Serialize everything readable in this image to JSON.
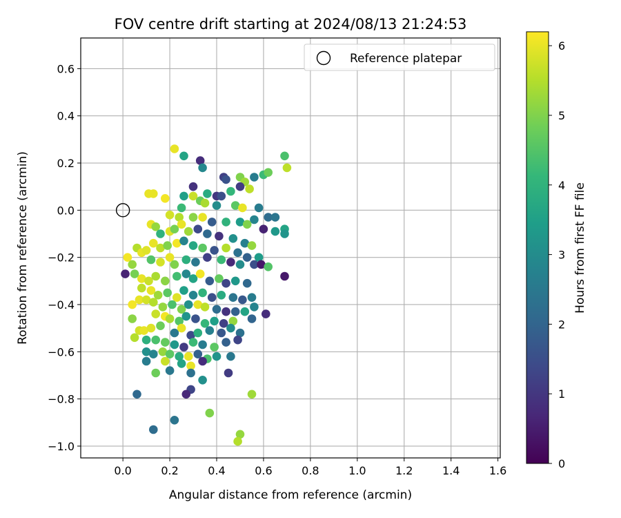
{
  "chart_data": {
    "type": "scatter",
    "title": "FOV centre drift starting at 2024/08/13 21:24:53",
    "xlabel": "Angular distance from reference (arcmin)",
    "ylabel": "Rotation from reference (arcmin)",
    "xlim": [
      -0.18,
      1.61
    ],
    "ylim": [
      -1.05,
      0.73
    ],
    "xticks": [
      0.0,
      0.2,
      0.4,
      0.6,
      0.8,
      1.0,
      1.2,
      1.4,
      1.6
    ],
    "xtick_labels": [
      "0.0",
      "0.2",
      "0.4",
      "0.6",
      "0.8",
      "1.0",
      "1.2",
      "1.4",
      "1.6"
    ],
    "yticks": [
      0.6,
      0.4,
      0.2,
      0.0,
      -0.2,
      -0.4,
      -0.6,
      -0.8,
      -1.0
    ],
    "ytick_labels": [
      "0.6",
      "0.4",
      "0.2",
      "0.0",
      "−0.2",
      "−0.4",
      "−0.6",
      "−0.8",
      "−1.0"
    ],
    "grid": true,
    "legend": {
      "placement": "top-right",
      "entries": [
        {
          "label": "Reference platepar",
          "marker": "open-circle"
        }
      ]
    },
    "reference_point": {
      "x": 0.0,
      "y": 0.0
    },
    "colorbar": {
      "label": "Hours from first FF file",
      "colormap": "viridis",
      "range": [
        0,
        6.2
      ],
      "ticks": [
        0,
        1,
        2,
        3,
        4,
        5,
        6
      ],
      "tick_labels": [
        "0",
        "1",
        "2",
        "3",
        "4",
        "5",
        "6"
      ],
      "stops": [
        "#440154",
        "#482878",
        "#3e4989",
        "#31688e",
        "#26828e",
        "#1f9e89",
        "#35b779",
        "#6ece58",
        "#b5de2b",
        "#fde725"
      ]
    },
    "points": [
      [
        0.22,
        0.26,
        6.0
      ],
      [
        0.26,
        0.23,
        3.6
      ],
      [
        0.33,
        0.21,
        0.8
      ],
      [
        0.34,
        0.18,
        2.9
      ],
      [
        0.43,
        0.14,
        1.2
      ],
      [
        0.44,
        0.13,
        1.6
      ],
      [
        0.5,
        0.14,
        5.0
      ],
      [
        0.52,
        0.12,
        5.3
      ],
      [
        0.56,
        0.14,
        2.6
      ],
      [
        0.6,
        0.15,
        4.2
      ],
      [
        0.62,
        0.16,
        4.8
      ],
      [
        0.69,
        0.23,
        4.4
      ],
      [
        0.7,
        0.18,
        5.6
      ],
      [
        0.3,
        0.1,
        0.9
      ],
      [
        0.5,
        0.1,
        1.1
      ],
      [
        0.54,
        0.09,
        5.6
      ],
      [
        0.36,
        0.07,
        3.8
      ],
      [
        0.4,
        0.06,
        1.0
      ],
      [
        0.42,
        0.06,
        1.5
      ],
      [
        0.46,
        0.08,
        4.1
      ],
      [
        0.26,
        0.06,
        3.5
      ],
      [
        0.3,
        0.06,
        5.7
      ],
      [
        0.11,
        0.07,
        6.0
      ],
      [
        0.13,
        0.07,
        6.0
      ],
      [
        0.18,
        0.05,
        6.1
      ],
      [
        0.25,
        0.01,
        4.2
      ],
      [
        0.33,
        0.04,
        4.8
      ],
      [
        0.35,
        0.03,
        5.4
      ],
      [
        0.4,
        0.02,
        3.0
      ],
      [
        0.48,
        0.02,
        4.6
      ],
      [
        0.51,
        0.01,
        6.0
      ],
      [
        0.58,
        0.01,
        2.6
      ],
      [
        0.62,
        -0.03,
        2.2
      ],
      [
        0.65,
        -0.03,
        2.4
      ],
      [
        0.56,
        -0.04,
        2.8
      ],
      [
        0.2,
        -0.02,
        5.8
      ],
      [
        0.24,
        -0.03,
        5.5
      ],
      [
        0.3,
        -0.03,
        5.1
      ],
      [
        0.34,
        -0.03,
        6.0
      ],
      [
        0.38,
        -0.05,
        1.8
      ],
      [
        0.44,
        -0.05,
        4.0
      ],
      [
        0.5,
        -0.05,
        3.4
      ],
      [
        0.53,
        -0.06,
        5.0
      ],
      [
        0.6,
        -0.08,
        0.6
      ],
      [
        0.65,
        -0.09,
        3.3
      ],
      [
        0.69,
        -0.08,
        3.6
      ],
      [
        0.69,
        -0.1,
        3.2
      ],
      [
        0.12,
        -0.06,
        6.0
      ],
      [
        0.14,
        -0.07,
        5.2
      ],
      [
        0.16,
        -0.1,
        4.0
      ],
      [
        0.2,
        -0.09,
        5.9
      ],
      [
        0.22,
        -0.08,
        4.9
      ],
      [
        0.25,
        -0.06,
        6.0
      ],
      [
        0.28,
        -0.09,
        5.3
      ],
      [
        0.32,
        -0.08,
        1.4
      ],
      [
        0.36,
        -0.1,
        2.1
      ],
      [
        0.41,
        -0.11,
        0.9
      ],
      [
        0.47,
        -0.12,
        3.1
      ],
      [
        0.52,
        -0.14,
        2.7
      ],
      [
        0.55,
        -0.15,
        5.2
      ],
      [
        0.13,
        -0.14,
        6.0
      ],
      [
        0.16,
        -0.16,
        5.6
      ],
      [
        0.19,
        -0.15,
        5.0
      ],
      [
        0.23,
        -0.14,
        6.1
      ],
      [
        0.26,
        -0.13,
        2.8
      ],
      [
        0.3,
        -0.15,
        3.7
      ],
      [
        0.34,
        -0.16,
        4.6
      ],
      [
        0.39,
        -0.17,
        1.6
      ],
      [
        0.44,
        -0.16,
        5.5
      ],
      [
        0.49,
        -0.18,
        2.3
      ],
      [
        0.53,
        -0.2,
        1.9
      ],
      [
        0.58,
        -0.2,
        3.4
      ],
      [
        0.06,
        -0.16,
        5.5
      ],
      [
        0.08,
        -0.18,
        6.0
      ],
      [
        0.1,
        -0.17,
        5.9
      ],
      [
        0.02,
        -0.2,
        6.1
      ],
      [
        0.04,
        -0.23,
        5.2
      ],
      [
        0.12,
        -0.21,
        4.5
      ],
      [
        0.16,
        -0.22,
        5.8
      ],
      [
        0.2,
        -0.2,
        6.0
      ],
      [
        0.22,
        -0.23,
        5.0
      ],
      [
        0.27,
        -0.21,
        3.9
      ],
      [
        0.31,
        -0.22,
        2.5
      ],
      [
        0.36,
        -0.2,
        1.2
      ],
      [
        0.42,
        -0.21,
        4.2
      ],
      [
        0.46,
        -0.22,
        0.7
      ],
      [
        0.5,
        -0.23,
        3.0
      ],
      [
        0.56,
        -0.23,
        1.5
      ],
      [
        0.59,
        -0.23,
        0.4
      ],
      [
        0.62,
        -0.24,
        4.5
      ],
      [
        0.01,
        -0.27,
        0.6
      ],
      [
        0.05,
        -0.27,
        4.9
      ],
      [
        0.08,
        -0.29,
        6.0
      ],
      [
        0.11,
        -0.3,
        5.7
      ],
      [
        0.14,
        -0.28,
        5.4
      ],
      [
        0.18,
        -0.3,
        5.1
      ],
      [
        0.23,
        -0.28,
        4.3
      ],
      [
        0.27,
        -0.27,
        2.9
      ],
      [
        0.3,
        -0.29,
        3.6
      ],
      [
        0.33,
        -0.27,
        6.1
      ],
      [
        0.37,
        -0.3,
        1.8
      ],
      [
        0.41,
        -0.29,
        4.7
      ],
      [
        0.44,
        -0.31,
        1.3
      ],
      [
        0.48,
        -0.3,
        3.3
      ],
      [
        0.53,
        -0.31,
        2.1
      ],
      [
        0.69,
        -0.28,
        0.4
      ],
      [
        0.08,
        -0.33,
        5.6
      ],
      [
        0.12,
        -0.34,
        6.0
      ],
      [
        0.15,
        -0.36,
        5.3
      ],
      [
        0.19,
        -0.35,
        4.6
      ],
      [
        0.23,
        -0.37,
        5.9
      ],
      [
        0.26,
        -0.34,
        3.5
      ],
      [
        0.3,
        -0.36,
        2.8
      ],
      [
        0.34,
        -0.35,
        4.0
      ],
      [
        0.38,
        -0.37,
        1.5
      ],
      [
        0.42,
        -0.36,
        3.8
      ],
      [
        0.47,
        -0.37,
        2.4
      ],
      [
        0.51,
        -0.38,
        1.7
      ],
      [
        0.55,
        -0.37,
        2.6
      ],
      [
        0.04,
        -0.4,
        6.1
      ],
      [
        0.07,
        -0.38,
        6.0
      ],
      [
        0.1,
        -0.38,
        5.8
      ],
      [
        0.13,
        -0.39,
        5.5
      ],
      [
        0.17,
        -0.41,
        5.2
      ],
      [
        0.21,
        -0.4,
        4.4
      ],
      [
        0.25,
        -0.42,
        5.0
      ],
      [
        0.28,
        -0.4,
        3.1
      ],
      [
        0.32,
        -0.4,
        6.0
      ],
      [
        0.35,
        -0.41,
        5.6
      ],
      [
        0.4,
        -0.42,
        2.2
      ],
      [
        0.44,
        -0.43,
        0.9
      ],
      [
        0.48,
        -0.43,
        1.9
      ],
      [
        0.52,
        -0.43,
        3.6
      ],
      [
        0.56,
        -0.41,
        2.8
      ],
      [
        0.14,
        -0.44,
        5.7
      ],
      [
        0.18,
        -0.45,
        6.1
      ],
      [
        0.2,
        -0.46,
        5.4
      ],
      [
        0.24,
        -0.47,
        4.5
      ],
      [
        0.27,
        -0.45,
        3.2
      ],
      [
        0.31,
        -0.46,
        1.6
      ],
      [
        0.35,
        -0.48,
        4.1
      ],
      [
        0.39,
        -0.47,
        3.5
      ],
      [
        0.43,
        -0.48,
        1.2
      ],
      [
        0.47,
        -0.47,
        5.2
      ],
      [
        0.55,
        -0.46,
        2.0
      ],
      [
        0.61,
        -0.44,
        0.8
      ],
      [
        0.04,
        -0.46,
        5.1
      ],
      [
        0.07,
        -0.51,
        5.8
      ],
      [
        0.09,
        -0.51,
        6.0
      ],
      [
        0.12,
        -0.5,
        5.9
      ],
      [
        0.16,
        -0.49,
        4.8
      ],
      [
        0.22,
        -0.52,
        2.5
      ],
      [
        0.25,
        -0.5,
        6.0
      ],
      [
        0.29,
        -0.53,
        1.4
      ],
      [
        0.32,
        -0.52,
        3.9
      ],
      [
        0.37,
        -0.51,
        2.7
      ],
      [
        0.42,
        -0.52,
        1.7
      ],
      [
        0.46,
        -0.5,
        3.0
      ],
      [
        0.5,
        -0.52,
        2.3
      ],
      [
        0.05,
        -0.54,
        5.5
      ],
      [
        0.1,
        -0.55,
        3.9
      ],
      [
        0.14,
        -0.55,
        4.4
      ],
      [
        0.18,
        -0.56,
        4.7
      ],
      [
        0.22,
        -0.57,
        3.3
      ],
      [
        0.26,
        -0.58,
        1.1
      ],
      [
        0.3,
        -0.56,
        4.2
      ],
      [
        0.34,
        -0.57,
        2.6
      ],
      [
        0.39,
        -0.58,
        4.6
      ],
      [
        0.44,
        -0.56,
        1.9
      ],
      [
        0.49,
        -0.55,
        1.3
      ],
      [
        0.1,
        -0.6,
        3.1
      ],
      [
        0.13,
        -0.61,
        2.8
      ],
      [
        0.17,
        -0.6,
        5.2
      ],
      [
        0.2,
        -0.61,
        4.6
      ],
      [
        0.24,
        -0.62,
        3.8
      ],
      [
        0.28,
        -0.62,
        6.0
      ],
      [
        0.32,
        -0.61,
        1.9
      ],
      [
        0.36,
        -0.63,
        4.4
      ],
      [
        0.4,
        -0.62,
        3.2
      ],
      [
        0.46,
        -0.62,
        2.5
      ],
      [
        0.1,
        -0.64,
        2.6
      ],
      [
        0.18,
        -0.64,
        5.7
      ],
      [
        0.25,
        -0.65,
        3.6
      ],
      [
        0.29,
        -0.66,
        6.0
      ],
      [
        0.34,
        -0.64,
        0.8
      ],
      [
        0.2,
        -0.68,
        2.5
      ],
      [
        0.14,
        -0.69,
        4.8
      ],
      [
        0.29,
        -0.69,
        2.3
      ],
      [
        0.45,
        -0.69,
        1.1
      ],
      [
        0.34,
        -0.72,
        3.1
      ],
      [
        0.29,
        -0.76,
        1.3
      ],
      [
        0.27,
        -0.78,
        0.7
      ],
      [
        0.06,
        -0.78,
        2.1
      ],
      [
        0.55,
        -0.78,
        5.3
      ],
      [
        0.37,
        -0.86,
        5.0
      ],
      [
        0.22,
        -0.89,
        2.4
      ],
      [
        0.13,
        -0.93,
        2.2
      ],
      [
        0.5,
        -0.95,
        5.2
      ],
      [
        0.49,
        -0.98,
        5.5
      ]
    ]
  }
}
